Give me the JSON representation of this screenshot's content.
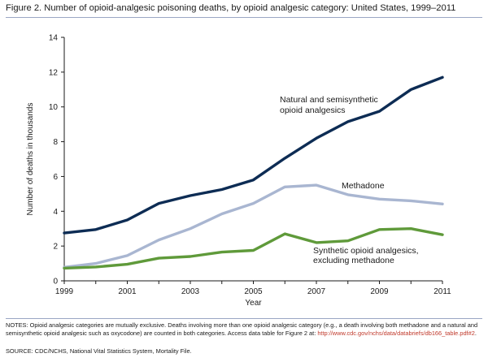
{
  "figure": {
    "title": "Figure 2. Number of opioid-analgesic poisoning deaths, by opioid analgesic category: United States, 1999–2011"
  },
  "notes": {
    "text": "NOTES: Opioid analgesic categories are mutually exclusive. Deaths involving more than one opioid analgesic category (e.g., a death involving both methadone and a natural and semisynthetic opioid analgesic such as oxycodone) are counted in both categories. Access data table for Figure 2 at: ",
    "link": "http://www.cdc.gov/nchs/data/databriefs/db166_table.pdf#2",
    "link_suffix": "."
  },
  "source": {
    "text": "SOURCE: CDC/NCHS, National Vital Statistics System, Mortality File."
  },
  "colors": {
    "natural": "#0d2c54",
    "methadone": "#a9b6d1",
    "synthetic": "#5f9a3a",
    "axis": "#1a1a1a"
  },
  "chart_data": {
    "type": "line",
    "title": "Figure 2. Number of opioid-analgesic poisoning deaths, by opioid analgesic category: United States, 1999–2011",
    "xlabel": "Year",
    "ylabel": "Number of deaths in thousands",
    "xlim": [
      1999,
      2011
    ],
    "ylim": [
      0,
      14
    ],
    "x_ticks": [
      1999,
      2001,
      2003,
      2005,
      2007,
      2009,
      2011
    ],
    "y_ticks": [
      0,
      2,
      4,
      6,
      8,
      10,
      12,
      14
    ],
    "grid": false,
    "x": [
      1999,
      2000,
      2001,
      2002,
      2003,
      2004,
      2005,
      2006,
      2007,
      2008,
      2009,
      2010,
      2011
    ],
    "series": [
      {
        "name": "Natural and semisynthetic opioid analgesics",
        "label_lines": [
          "Natural and semisynthetic",
          "opioid analgesics"
        ],
        "color_key": "natural",
        "values": [
          2.75,
          2.95,
          3.5,
          4.45,
          4.9,
          5.25,
          5.8,
          7.05,
          8.2,
          9.15,
          9.75,
          11.0,
          11.7
        ]
      },
      {
        "name": "Methadone",
        "label_lines": [
          "Methadone"
        ],
        "color_key": "methadone",
        "values": [
          0.78,
          1.0,
          1.45,
          2.35,
          3.0,
          3.85,
          4.45,
          5.4,
          5.5,
          4.95,
          4.7,
          4.6,
          4.42
        ]
      },
      {
        "name": "Synthetic opioid analgesics, excluding methadone",
        "label_lines": [
          "Synthetic opioid analgesics,",
          "excluding methadone"
        ],
        "color_key": "synthetic",
        "values": [
          0.73,
          0.8,
          0.95,
          1.3,
          1.4,
          1.65,
          1.75,
          2.7,
          2.2,
          2.3,
          2.95,
          3.0,
          2.65
        ]
      }
    ]
  }
}
